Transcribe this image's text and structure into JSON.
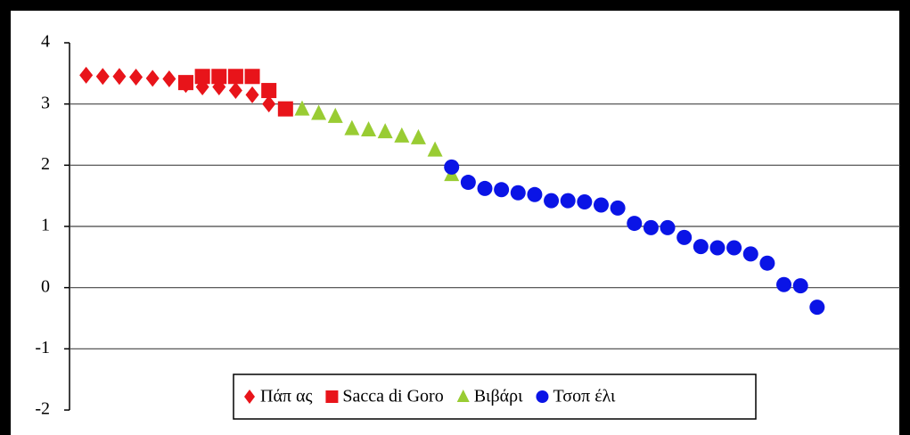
{
  "chart_data": {
    "type": "scatter",
    "ylim": [
      -2,
      4
    ],
    "yticks": [
      -2,
      -1,
      0,
      1,
      2,
      3,
      4
    ],
    "xlim": [
      0,
      50
    ],
    "grid": true,
    "legend": "bottom",
    "series": [
      {
        "name": "Πάπ ας",
        "color": "#e8141a",
        "marker": "diamond",
        "x": [
          1,
          2,
          3,
          4,
          5,
          6,
          7,
          8,
          9,
          10,
          11,
          12
        ],
        "values": [
          3.47,
          3.45,
          3.45,
          3.44,
          3.42,
          3.41,
          3.32,
          3.28,
          3.28,
          3.22,
          3.15,
          3.0
        ]
      },
      {
        "name": "Sacca di Goro",
        "color": "#e8141a",
        "marker": "square",
        "x": [
          7,
          8,
          9,
          10,
          11,
          12,
          13
        ],
        "values": [
          3.35,
          3.45,
          3.45,
          3.45,
          3.45,
          3.22,
          2.92
        ]
      },
      {
        "name": "Βιβάρι",
        "color": "#99cc33",
        "marker": "triangle",
        "x": [
          14,
          15,
          16,
          17,
          18,
          19,
          20,
          21,
          22,
          23
        ],
        "values": [
          2.92,
          2.85,
          2.8,
          2.6,
          2.58,
          2.55,
          2.48,
          2.45,
          2.25,
          1.85
        ]
      },
      {
        "name": "Τσοπ έλι",
        "color": "#0a14e6",
        "marker": "circle",
        "x": [
          23,
          24,
          25,
          26,
          27,
          28,
          29,
          30,
          31,
          32,
          33,
          34,
          35,
          36,
          37,
          38,
          39,
          40,
          41,
          42,
          43,
          44,
          45
        ],
        "values": [
          1.97,
          1.72,
          1.62,
          1.6,
          1.55,
          1.52,
          1.42,
          1.42,
          1.4,
          1.35,
          1.3,
          1.05,
          0.98,
          0.98,
          0.82,
          0.67,
          0.65,
          0.65,
          0.55,
          0.4,
          0.05,
          0.03,
          -0.32
        ]
      }
    ]
  }
}
